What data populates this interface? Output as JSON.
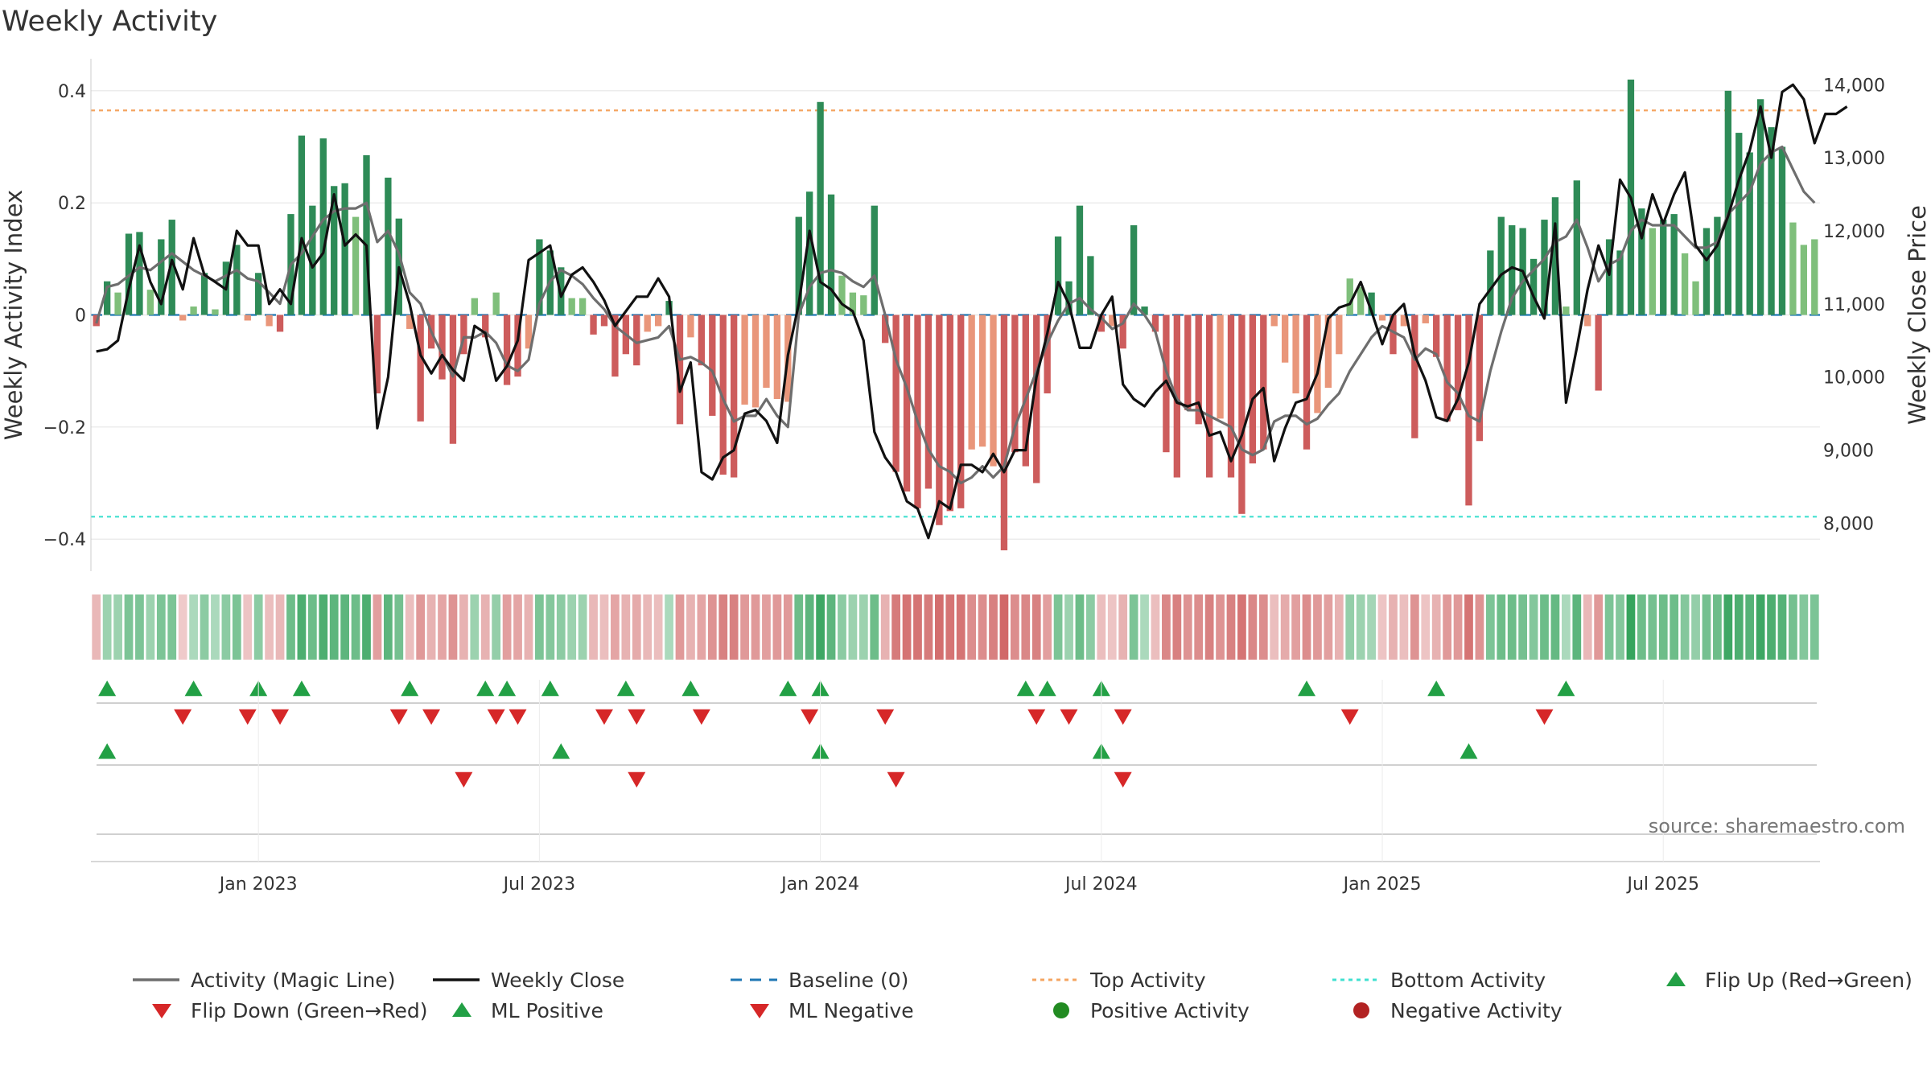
{
  "chart_data": {
    "type": "bar",
    "title": "Weekly Activity",
    "ylabel": "Weekly Activity Index",
    "y2label": "Weekly Close Price",
    "source": "source: sharemaestro.com",
    "ylim": [
      -0.45,
      0.45
    ],
    "y2lim": [
      7400,
      14300
    ],
    "yticks": [
      {
        "v": 0.4,
        "label": "0.4"
      },
      {
        "v": 0.2,
        "label": "0.2"
      },
      {
        "v": 0,
        "label": "0"
      },
      {
        "v": -0.2,
        "label": "−0.2"
      },
      {
        "v": -0.4,
        "label": "−0.4"
      }
    ],
    "y2ticks": [
      {
        "v": 14000,
        "label": "14,000"
      },
      {
        "v": 13000,
        "label": "13,000"
      },
      {
        "v": 12000,
        "label": "12,000"
      },
      {
        "v": 11000,
        "label": "11,000"
      },
      {
        "v": 10000,
        "label": "10,000"
      },
      {
        "v": 9000,
        "label": "9,000"
      },
      {
        "v": 8000,
        "label": "8,000"
      }
    ],
    "x_start_week": 0,
    "xticks": [
      {
        "w": 15,
        "label": "Jan 2023"
      },
      {
        "w": 41,
        "label": "Jul 2023"
      },
      {
        "w": 67,
        "label": "Jan 2024"
      },
      {
        "w": 93,
        "label": "Jul 2024"
      },
      {
        "w": 119,
        "label": "Jan 2025"
      },
      {
        "w": 145,
        "label": "Jul 2025"
      }
    ],
    "top_activity": 0.365,
    "bottom_activity": -0.36,
    "activity": [
      -0.02,
      0.06,
      0.04,
      0.145,
      0.148,
      0.045,
      0.135,
      0.17,
      -0.01,
      0.015,
      0.075,
      0.01,
      0.095,
      0.125,
      -0.01,
      0.075,
      -0.02,
      -0.03,
      0.18,
      0.32,
      0.195,
      0.315,
      0.23,
      0.235,
      0.175,
      0.285,
      -0.14,
      0.245,
      0.172,
      -0.025,
      -0.19,
      -0.06,
      -0.115,
      -0.23,
      -0.07,
      0.03,
      -0.04,
      0.04,
      -0.125,
      -0.11,
      -0.06,
      0.135,
      0.115,
      0.085,
      0.03,
      0.03,
      -0.035,
      -0.02,
      -0.11,
      -0.07,
      -0.09,
      -0.03,
      -0.02,
      0.025,
      -0.195,
      -0.04,
      -0.09,
      -0.18,
      -0.285,
      -0.29,
      -0.16,
      -0.165,
      -0.13,
      -0.15,
      -0.155,
      0.175,
      0.22,
      0.38,
      0.215,
      0.07,
      0.04,
      0.035,
      0.195,
      -0.05,
      -0.28,
      -0.315,
      -0.345,
      -0.31,
      -0.375,
      -0.35,
      -0.345,
      -0.24,
      -0.235,
      -0.27,
      -0.42,
      -0.245,
      -0.27,
      -0.3,
      -0.14,
      0.14,
      0.06,
      0.195,
      0.105,
      -0.03,
      -0.02,
      -0.06,
      0.16,
      0.015,
      -0.03,
      -0.245,
      -0.29,
      -0.17,
      -0.195,
      -0.29,
      -0.185,
      -0.29,
      -0.355,
      -0.265,
      -0.24,
      -0.02,
      -0.085,
      -0.14,
      -0.24,
      -0.175,
      -0.13,
      -0.07,
      0.065,
      0.05,
      0.04,
      -0.01,
      -0.07,
      -0.02,
      -0.22,
      -0.015,
      -0.075,
      -0.19,
      -0.17,
      -0.34,
      -0.225,
      0.115,
      0.175,
      0.16,
      0.155,
      0.1,
      0.17,
      0.21,
      0.015,
      0.24,
      -0.02,
      -0.135,
      0.135,
      0.115,
      0.42,
      0.19,
      0.155,
      0.17,
      0.18,
      0.11,
      0.06,
      0.155,
      0.175,
      0.4,
      0.325,
      0.29,
      0.385,
      0.335,
      0.3,
      0.165,
      0.125,
      0.135
    ],
    "magic_line": [
      -0.015,
      0.05,
      0.055,
      0.07,
      0.085,
      0.08,
      0.095,
      0.11,
      0.095,
      0.08,
      0.07,
      0.06,
      0.07,
      0.08,
      0.065,
      0.06,
      0.04,
      0.02,
      0.09,
      0.11,
      0.14,
      0.17,
      0.185,
      0.19,
      0.19,
      0.2,
      0.13,
      0.15,
      0.11,
      0.04,
      0.02,
      -0.03,
      -0.07,
      -0.11,
      -0.04,
      -0.04,
      -0.03,
      -0.05,
      -0.09,
      -0.1,
      -0.08,
      0.02,
      0.06,
      0.08,
      0.07,
      0.055,
      0.03,
      0.01,
      -0.02,
      -0.035,
      -0.05,
      -0.045,
      -0.04,
      -0.02,
      -0.08,
      -0.075,
      -0.085,
      -0.1,
      -0.15,
      -0.19,
      -0.18,
      -0.18,
      -0.15,
      -0.18,
      -0.2,
      0.0,
      0.05,
      0.075,
      0.08,
      0.075,
      0.06,
      0.05,
      0.07,
      0.0,
      -0.08,
      -0.13,
      -0.19,
      -0.24,
      -0.27,
      -0.28,
      -0.3,
      -0.29,
      -0.27,
      -0.29,
      -0.27,
      -0.2,
      -0.15,
      -0.1,
      -0.05,
      -0.01,
      0.02,
      0.03,
      0.01,
      -0.005,
      -0.025,
      -0.015,
      0.02,
      0.0,
      -0.03,
      -0.1,
      -0.15,
      -0.17,
      -0.17,
      -0.18,
      -0.19,
      -0.2,
      -0.24,
      -0.25,
      -0.24,
      -0.19,
      -0.18,
      -0.18,
      -0.195,
      -0.185,
      -0.16,
      -0.14,
      -0.1,
      -0.07,
      -0.04,
      -0.02,
      -0.03,
      -0.04,
      -0.08,
      -0.06,
      -0.07,
      -0.12,
      -0.14,
      -0.18,
      -0.19,
      -0.1,
      -0.03,
      0.03,
      0.06,
      0.08,
      0.1,
      0.13,
      0.14,
      0.17,
      0.12,
      0.06,
      0.09,
      0.1,
      0.15,
      0.17,
      0.16,
      0.16,
      0.16,
      0.14,
      0.12,
      0.12,
      0.13,
      0.18,
      0.2,
      0.22,
      0.27,
      0.29,
      0.3,
      0.26,
      0.22,
      0.2
    ],
    "weekly_close": [
      10350,
      10380,
      10500,
      11200,
      11800,
      11300,
      11000,
      11600,
      11200,
      11900,
      11400,
      11300,
      11200,
      12000,
      11800,
      11800,
      11000,
      11200,
      11000,
      11900,
      11500,
      11700,
      12500,
      11800,
      11950,
      11800,
      9300,
      10000,
      11500,
      11000,
      10300,
      10050,
      10300,
      10100,
      9950,
      10700,
      10600,
      9950,
      10150,
      10500,
      11600,
      11700,
      11800,
      11100,
      11400,
      11500,
      11300,
      11050,
      10700,
      10900,
      11100,
      11100,
      11350,
      11100,
      9800,
      10200,
      8700,
      8600,
      8900,
      9000,
      9500,
      9550,
      9400,
      9100,
      10300,
      11000,
      12000,
      11300,
      11200,
      11000,
      10900,
      10500,
      9250,
      8900,
      8700,
      8300,
      8200,
      7800,
      8300,
      8200,
      8800,
      8800,
      8700,
      8950,
      8700,
      9000,
      9000,
      10000,
      10600,
      11300,
      11000,
      10400,
      10400,
      10850,
      11100,
      9900,
      9700,
      9600,
      9800,
      9950,
      9650,
      9600,
      9650,
      9200,
      9250,
      8850,
      9200,
      9700,
      9850,
      8850,
      9300,
      9650,
      9700,
      10050,
      10800,
      10950,
      11000,
      11300,
      10900,
      10450,
      10850,
      11000,
      10300,
      9950,
      9450,
      9400,
      9700,
      10200,
      11000,
      11200,
      11400,
      11500,
      11450,
      11100,
      10800,
      12100,
      9650,
      10400,
      11200,
      11800,
      11400,
      12700,
      12450,
      11900,
      12500,
      12100,
      12500,
      12800,
      11800,
      11600,
      11800,
      12200,
      12700,
      13100,
      13700,
      13000,
      13900,
      14000,
      13800,
      13200,
      13600,
      13600,
      13700
    ],
    "heatmap_intensity": [
      -0.25,
      0.3,
      0.3,
      0.5,
      0.5,
      0.3,
      0.5,
      0.5,
      -0.1,
      0.2,
      0.4,
      0.2,
      0.4,
      0.5,
      -0.15,
      0.4,
      -0.2,
      -0.25,
      0.6,
      0.8,
      0.6,
      0.8,
      0.7,
      0.7,
      0.6,
      0.8,
      -0.45,
      0.7,
      0.55,
      -0.2,
      -0.5,
      -0.3,
      -0.4,
      -0.55,
      -0.3,
      0.3,
      -0.3,
      0.35,
      -0.45,
      -0.4,
      -0.3,
      0.5,
      0.45,
      0.4,
      0.3,
      0.3,
      -0.25,
      -0.2,
      -0.4,
      -0.3,
      -0.35,
      -0.25,
      -0.2,
      0.2,
      -0.5,
      -0.3,
      -0.4,
      -0.55,
      -0.7,
      -0.7,
      -0.5,
      -0.5,
      -0.45,
      -0.5,
      -0.5,
      0.6,
      0.7,
      0.9,
      0.7,
      0.4,
      0.3,
      0.3,
      0.6,
      -0.3,
      -0.75,
      -0.8,
      -0.8,
      -0.75,
      -0.85,
      -0.8,
      -0.8,
      -0.6,
      -0.6,
      -0.7,
      -0.9,
      -0.6,
      -0.65,
      -0.7,
      -0.45,
      0.5,
      0.3,
      0.6,
      0.4,
      -0.2,
      -0.15,
      -0.3,
      0.5,
      0.2,
      -0.2,
      -0.65,
      -0.7,
      -0.55,
      -0.6,
      -0.7,
      -0.55,
      -0.7,
      -0.8,
      -0.65,
      -0.6,
      -0.2,
      -0.35,
      -0.45,
      -0.6,
      -0.5,
      -0.45,
      -0.3,
      0.35,
      0.3,
      0.25,
      -0.15,
      -0.3,
      -0.2,
      -0.55,
      -0.15,
      -0.3,
      -0.5,
      -0.5,
      -0.8,
      -0.55,
      0.5,
      0.6,
      0.6,
      0.55,
      0.45,
      0.6,
      0.65,
      0.2,
      0.7,
      -0.25,
      -0.5,
      0.5,
      0.45,
      0.95,
      0.6,
      0.55,
      0.6,
      0.6,
      0.45,
      0.35,
      0.55,
      0.6,
      0.9,
      0.8,
      0.75,
      0.9,
      0.8,
      0.75,
      0.55,
      0.45,
      0.5
    ],
    "flip_up_weeks": [
      1,
      9,
      15,
      19,
      29,
      36,
      38,
      42,
      49,
      55,
      64,
      67,
      86,
      88,
      93,
      112,
      124,
      136
    ],
    "flip_down_weeks": [
      8,
      14,
      17,
      28,
      31,
      37,
      39,
      47,
      50,
      56,
      66,
      73,
      87,
      90,
      95,
      116,
      134
    ],
    "ml_positive_weeks": [
      1,
      43,
      67,
      93,
      127
    ],
    "ml_negative_weeks": [
      34,
      50,
      74,
      95
    ],
    "colors": {
      "pos_dark": "#2e8b57",
      "pos_light": "#7fbf7b",
      "neg_dark": "#cd5c5c",
      "neg_light": "#e9967a",
      "magic_line": "#6e6e6e",
      "close": "#111111",
      "baseline": "#1f77b4",
      "top": "#f4a460",
      "bottom": "#40e0d0",
      "flip_up": "#22a045",
      "flip_down": "#d62728",
      "pos_dot": "#228b22",
      "neg_dot": "#b22222",
      "grid": "#e6e6e6",
      "axis": "#cccccc"
    },
    "legend": [
      {
        "label": "Activity (Magic Line)",
        "kind": "line",
        "color": "#6e6e6e"
      },
      {
        "label": "Weekly Close",
        "kind": "line",
        "color": "#111111"
      },
      {
        "label": "Baseline (0)",
        "kind": "dash",
        "color": "#1f77b4"
      },
      {
        "label": "Top Activity",
        "kind": "dot-line",
        "color": "#f4a460"
      },
      {
        "label": "Bottom Activity",
        "kind": "dot-line",
        "color": "#40e0d0"
      },
      {
        "label": "Flip Up (Red→Green)",
        "kind": "tri-up",
        "color": "#22a045"
      },
      {
        "label": "Flip Down (Green→Red)",
        "kind": "tri-down",
        "color": "#d62728"
      },
      {
        "label": "ML Positive",
        "kind": "tri-up",
        "color": "#22a045"
      },
      {
        "label": "ML Negative",
        "kind": "tri-down",
        "color": "#d62728"
      },
      {
        "label": "Positive Activity",
        "kind": "dot",
        "color": "#228b22"
      },
      {
        "label": "Negative Activity",
        "kind": "dot",
        "color": "#b22222"
      }
    ]
  }
}
